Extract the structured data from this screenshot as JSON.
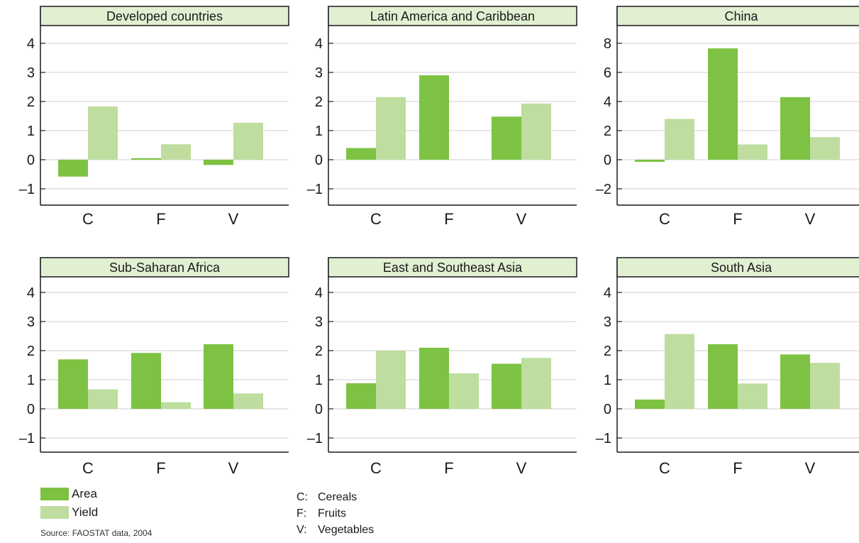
{
  "legend": {
    "items": [
      {
        "label": "Area",
        "color": "#7dc242"
      },
      {
        "label": "Yield",
        "color": "#bedd9f"
      }
    ]
  },
  "source": "Source: FAOSTAT data, 2004",
  "key": [
    {
      "code": "C:",
      "name": "Cereals"
    },
    {
      "code": "F:",
      "name": "Fruits"
    },
    {
      "code": "V:",
      "name": "Vegetables"
    }
  ],
  "colors": {
    "area": "#7dc242",
    "yield": "#bedd9f",
    "title_bg": "#e2f0d2",
    "grid": "#cfcfcf",
    "axis": "#1a1a1a"
  },
  "chart_data": [
    {
      "type": "bar",
      "title": "Developed countries",
      "categories": [
        "C",
        "F",
        "V"
      ],
      "ylim": [
        -1.5,
        5
      ],
      "yticks": [
        4,
        3,
        2,
        1,
        0,
        -1
      ],
      "ytick_labels": [
        "4",
        "3",
        "2",
        "1",
        "0",
        "–1"
      ],
      "series": [
        {
          "name": "Area",
          "values": [
            -0.58,
            0.05,
            -0.18
          ]
        },
        {
          "name": "Yield",
          "values": [
            1.83,
            0.53,
            1.27
          ]
        }
      ]
    },
    {
      "type": "bar",
      "title": "Latin America and Caribbean",
      "categories": [
        "C",
        "F",
        "V"
      ],
      "ylim": [
        -1.5,
        5
      ],
      "yticks": [
        4,
        3,
        2,
        1,
        0,
        -1
      ],
      "ytick_labels": [
        "4",
        "3",
        "2",
        "1",
        "0",
        "–1"
      ],
      "series": [
        {
          "name": "Area",
          "values": [
            0.4,
            2.9,
            1.48
          ]
        },
        {
          "name": "Yield",
          "values": [
            2.15,
            0,
            1.93
          ]
        }
      ]
    },
    {
      "type": "bar",
      "title": "China",
      "categories": [
        "C",
        "F",
        "V"
      ],
      "ylim": [
        -3,
        10
      ],
      "yticks": [
        8,
        6,
        4,
        2,
        0,
        -2
      ],
      "ytick_labels": [
        "8",
        "6",
        "4",
        "2",
        "0",
        "–2"
      ],
      "series": [
        {
          "name": "Area",
          "values": [
            -0.15,
            7.65,
            4.3
          ]
        },
        {
          "name": "Yield",
          "values": [
            2.8,
            1.05,
            1.55
          ]
        }
      ]
    },
    {
      "type": "bar",
      "title": "Sub-Saharan Africa",
      "categories": [
        "C",
        "F",
        "V"
      ],
      "ylim": [
        -1.5,
        5
      ],
      "yticks": [
        4,
        3,
        2,
        1,
        0,
        -1
      ],
      "ytick_labels": [
        "4",
        "3",
        "2",
        "1",
        "0",
        "–1"
      ],
      "series": [
        {
          "name": "Area",
          "values": [
            1.7,
            1.92,
            2.22
          ]
        },
        {
          "name": "Yield",
          "values": [
            0.67,
            0.23,
            0.53
          ]
        }
      ]
    },
    {
      "type": "bar",
      "title": "East and Southeast Asia",
      "categories": [
        "C",
        "F",
        "V"
      ],
      "ylim": [
        -1.5,
        5
      ],
      "yticks": [
        4,
        3,
        2,
        1,
        0,
        -1
      ],
      "ytick_labels": [
        "4",
        "3",
        "2",
        "1",
        "0",
        "–1"
      ],
      "series": [
        {
          "name": "Area",
          "values": [
            0.88,
            2.1,
            1.55
          ]
        },
        {
          "name": "Yield",
          "values": [
            2.0,
            1.22,
            1.75
          ]
        }
      ]
    },
    {
      "type": "bar",
      "title": "South Asia",
      "categories": [
        "C",
        "F",
        "V"
      ],
      "ylim": [
        -1.5,
        5
      ],
      "yticks": [
        4,
        3,
        2,
        1,
        0,
        -1
      ],
      "ytick_labels": [
        "4",
        "3",
        "2",
        "1",
        "0",
        "–1"
      ],
      "series": [
        {
          "name": "Area",
          "values": [
            0.32,
            2.22,
            1.87
          ]
        },
        {
          "name": "Yield",
          "values": [
            2.57,
            0.87,
            1.58
          ]
        }
      ]
    }
  ]
}
